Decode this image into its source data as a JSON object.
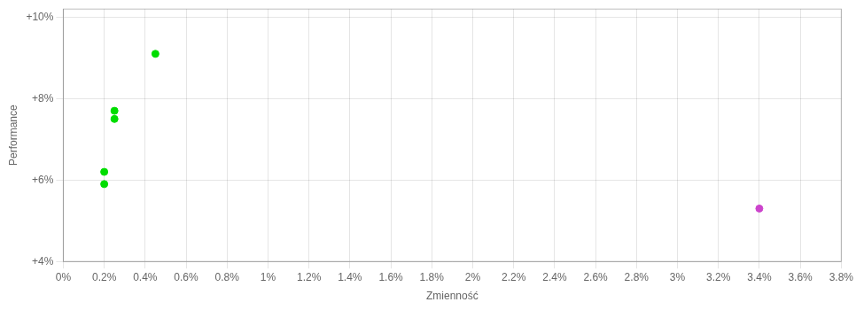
{
  "chart_data": {
    "type": "scatter",
    "xlabel": "Zmienność",
    "ylabel": "Performance",
    "series": [
      {
        "color": "#00dd00",
        "x": [
          0.002,
          0.002,
          0.0025,
          0.0025,
          0.0045
        ],
        "values": [
          0.062,
          0.059,
          0.077,
          0.075,
          0.091
        ]
      },
      {
        "color": "#cc44cc",
        "x": [
          0.034
        ],
        "values": [
          0.053
        ]
      }
    ],
    "xlim": [
      0.0,
      0.038
    ],
    "ylim": [
      0.04,
      0.102
    ],
    "xticks": [
      {
        "value": 0.0,
        "label": "0%"
      },
      {
        "value": 0.002,
        "label": "0.2%"
      },
      {
        "value": 0.004,
        "label": "0.4%"
      },
      {
        "value": 0.006,
        "label": "0.6%"
      },
      {
        "value": 0.008,
        "label": "0.8%"
      },
      {
        "value": 0.01,
        "label": "1%"
      },
      {
        "value": 0.012,
        "label": "1.2%"
      },
      {
        "value": 0.014,
        "label": "1.4%"
      },
      {
        "value": 0.016,
        "label": "1.6%"
      },
      {
        "value": 0.018,
        "label": "1.8%"
      },
      {
        "value": 0.02,
        "label": "2%"
      },
      {
        "value": 0.022,
        "label": "2.2%"
      },
      {
        "value": 0.024,
        "label": "2.4%"
      },
      {
        "value": 0.026,
        "label": "2.6%"
      },
      {
        "value": 0.028,
        "label": "2.8%"
      },
      {
        "value": 0.03,
        "label": "3%"
      },
      {
        "value": 0.032,
        "label": "3.2%"
      },
      {
        "value": 0.034,
        "label": "3.4%"
      },
      {
        "value": 0.036,
        "label": "3.6%"
      },
      {
        "value": 0.038,
        "label": "3.8%"
      }
    ],
    "yticks": [
      {
        "value": 0.04,
        "label": "+4%"
      },
      {
        "value": 0.06,
        "label": "+6%"
      },
      {
        "value": 0.08,
        "label": "+8%"
      },
      {
        "value": 0.1,
        "label": "+10%"
      }
    ],
    "grid": true
  }
}
